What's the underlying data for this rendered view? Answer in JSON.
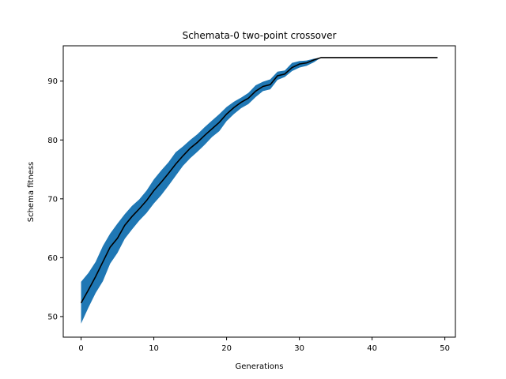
{
  "chart_data": {
    "type": "line",
    "title": "Schemata-0 two-point crossover",
    "xlabel": "Generations",
    "ylabel": "Schema fitness",
    "xlim": [
      -2.45,
      51.45
    ],
    "ylim": [
      46.5,
      96.0
    ],
    "xticks": [
      0,
      10,
      20,
      30,
      40,
      50
    ],
    "yticks": [
      50,
      60,
      70,
      80,
      90
    ],
    "grid": false,
    "legend": "none",
    "colors": {
      "band": "#1f77b4",
      "line": "#000000"
    },
    "x": [
      0,
      1,
      2,
      3,
      4,
      5,
      6,
      7,
      8,
      9,
      10,
      11,
      12,
      13,
      14,
      15,
      16,
      17,
      18,
      19,
      20,
      21,
      22,
      23,
      24,
      25,
      26,
      27,
      28,
      29,
      30,
      31,
      32,
      33,
      34,
      35,
      36,
      37,
      38,
      39,
      40,
      41,
      42,
      43,
      44,
      45,
      46,
      47,
      48,
      49
    ],
    "series": [
      {
        "values": [
          52.3,
          54.5,
          56.8,
          59.3,
          61.8,
          63.3,
          65.5,
          67.0,
          68.3,
          69.7,
          71.4,
          72.8,
          74.3,
          75.9,
          77.3,
          78.6,
          79.6,
          80.8,
          81.9,
          83.0,
          84.4,
          85.5,
          86.4,
          87.1,
          88.3,
          89.1,
          89.4,
          90.9,
          91.2,
          92.3,
          92.9,
          93.1,
          93.6,
          94.0,
          94.0,
          94.0,
          94.0,
          94.0,
          94.0,
          94.0,
          94.0,
          94.0,
          94.0,
          94.0,
          94.0,
          94.0,
          94.0,
          94.0,
          94.0,
          94.0
        ],
        "lower": [
          48.8,
          51.5,
          54.0,
          56.0,
          59.0,
          60.8,
          63.2,
          64.8,
          66.3,
          67.6,
          69.2,
          70.6,
          72.2,
          73.9,
          75.6,
          76.9,
          78.0,
          79.2,
          80.5,
          81.5,
          83.2,
          84.4,
          85.4,
          86.1,
          87.3,
          88.3,
          88.6,
          90.2,
          90.7,
          91.7,
          92.3,
          92.6,
          93.2,
          94.0,
          94.0,
          94.0,
          94.0,
          94.0,
          94.0,
          94.0,
          94.0,
          94.0,
          94.0,
          94.0,
          94.0,
          94.0,
          94.0,
          94.0,
          94.0,
          94.0
        ],
        "upper": [
          55.9,
          57.4,
          59.3,
          62.0,
          64.1,
          65.8,
          67.4,
          68.8,
          69.9,
          71.4,
          73.3,
          74.8,
          76.2,
          77.9,
          78.9,
          80.0,
          81.0,
          82.2,
          83.3,
          84.4,
          85.6,
          86.5,
          87.2,
          88.0,
          89.3,
          89.9,
          90.3,
          91.6,
          91.8,
          93.1,
          93.4,
          93.5,
          93.8,
          94.0,
          94.0,
          94.0,
          94.0,
          94.0,
          94.0,
          94.0,
          94.0,
          94.0,
          94.0,
          94.0,
          94.0,
          94.0,
          94.0,
          94.0,
          94.0,
          94.0
        ]
      }
    ]
  }
}
